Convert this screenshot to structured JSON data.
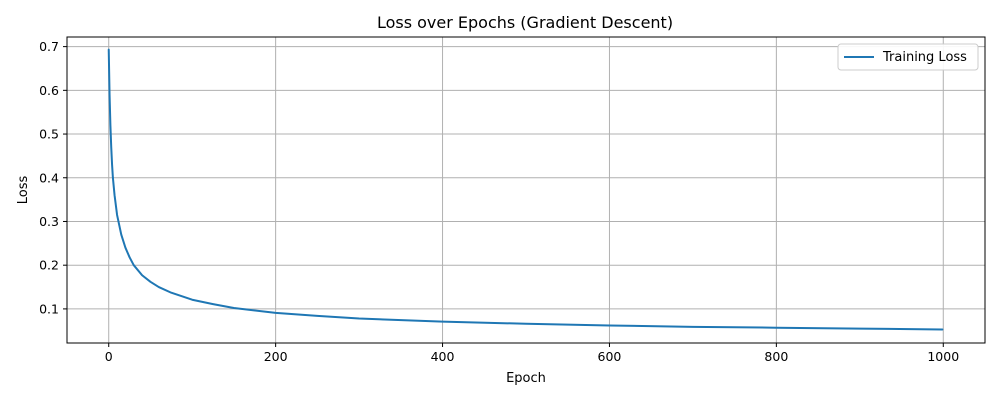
{
  "chart_data": {
    "type": "line",
    "title": "Loss over Epochs (Gradient Descent)",
    "xlabel": "Epoch",
    "ylabel": "Loss",
    "xlim": [
      -50,
      1050
    ],
    "ylim": [
      0.022,
      0.722
    ],
    "xticks": [
      0,
      200,
      400,
      600,
      800,
      1000
    ],
    "xtick_labels": [
      "0",
      "200",
      "400",
      "600",
      "800",
      "1000"
    ],
    "yticks": [
      0.1,
      0.2,
      0.3,
      0.4,
      0.5,
      0.6,
      0.7
    ],
    "ytick_labels": [
      "0.1",
      "0.2",
      "0.3",
      "0.4",
      "0.5",
      "0.6",
      "0.7"
    ],
    "grid": true,
    "legend_position": "top-right",
    "series": [
      {
        "name": "Training Loss",
        "color": "#1f77b4",
        "x": [
          0,
          1,
          2,
          3,
          4,
          5,
          7,
          10,
          15,
          20,
          25,
          30,
          40,
          50,
          60,
          75,
          100,
          125,
          150,
          200,
          250,
          300,
          400,
          500,
          600,
          700,
          800,
          900,
          999
        ],
        "y": [
          0.693,
          0.59,
          0.52,
          0.47,
          0.43,
          0.4,
          0.36,
          0.315,
          0.27,
          0.24,
          0.218,
          0.2,
          0.177,
          0.162,
          0.15,
          0.137,
          0.121,
          0.111,
          0.102,
          0.091,
          0.084,
          0.078,
          0.071,
          0.066,
          0.062,
          0.059,
          0.057,
          0.055,
          0.053
        ]
      }
    ]
  }
}
